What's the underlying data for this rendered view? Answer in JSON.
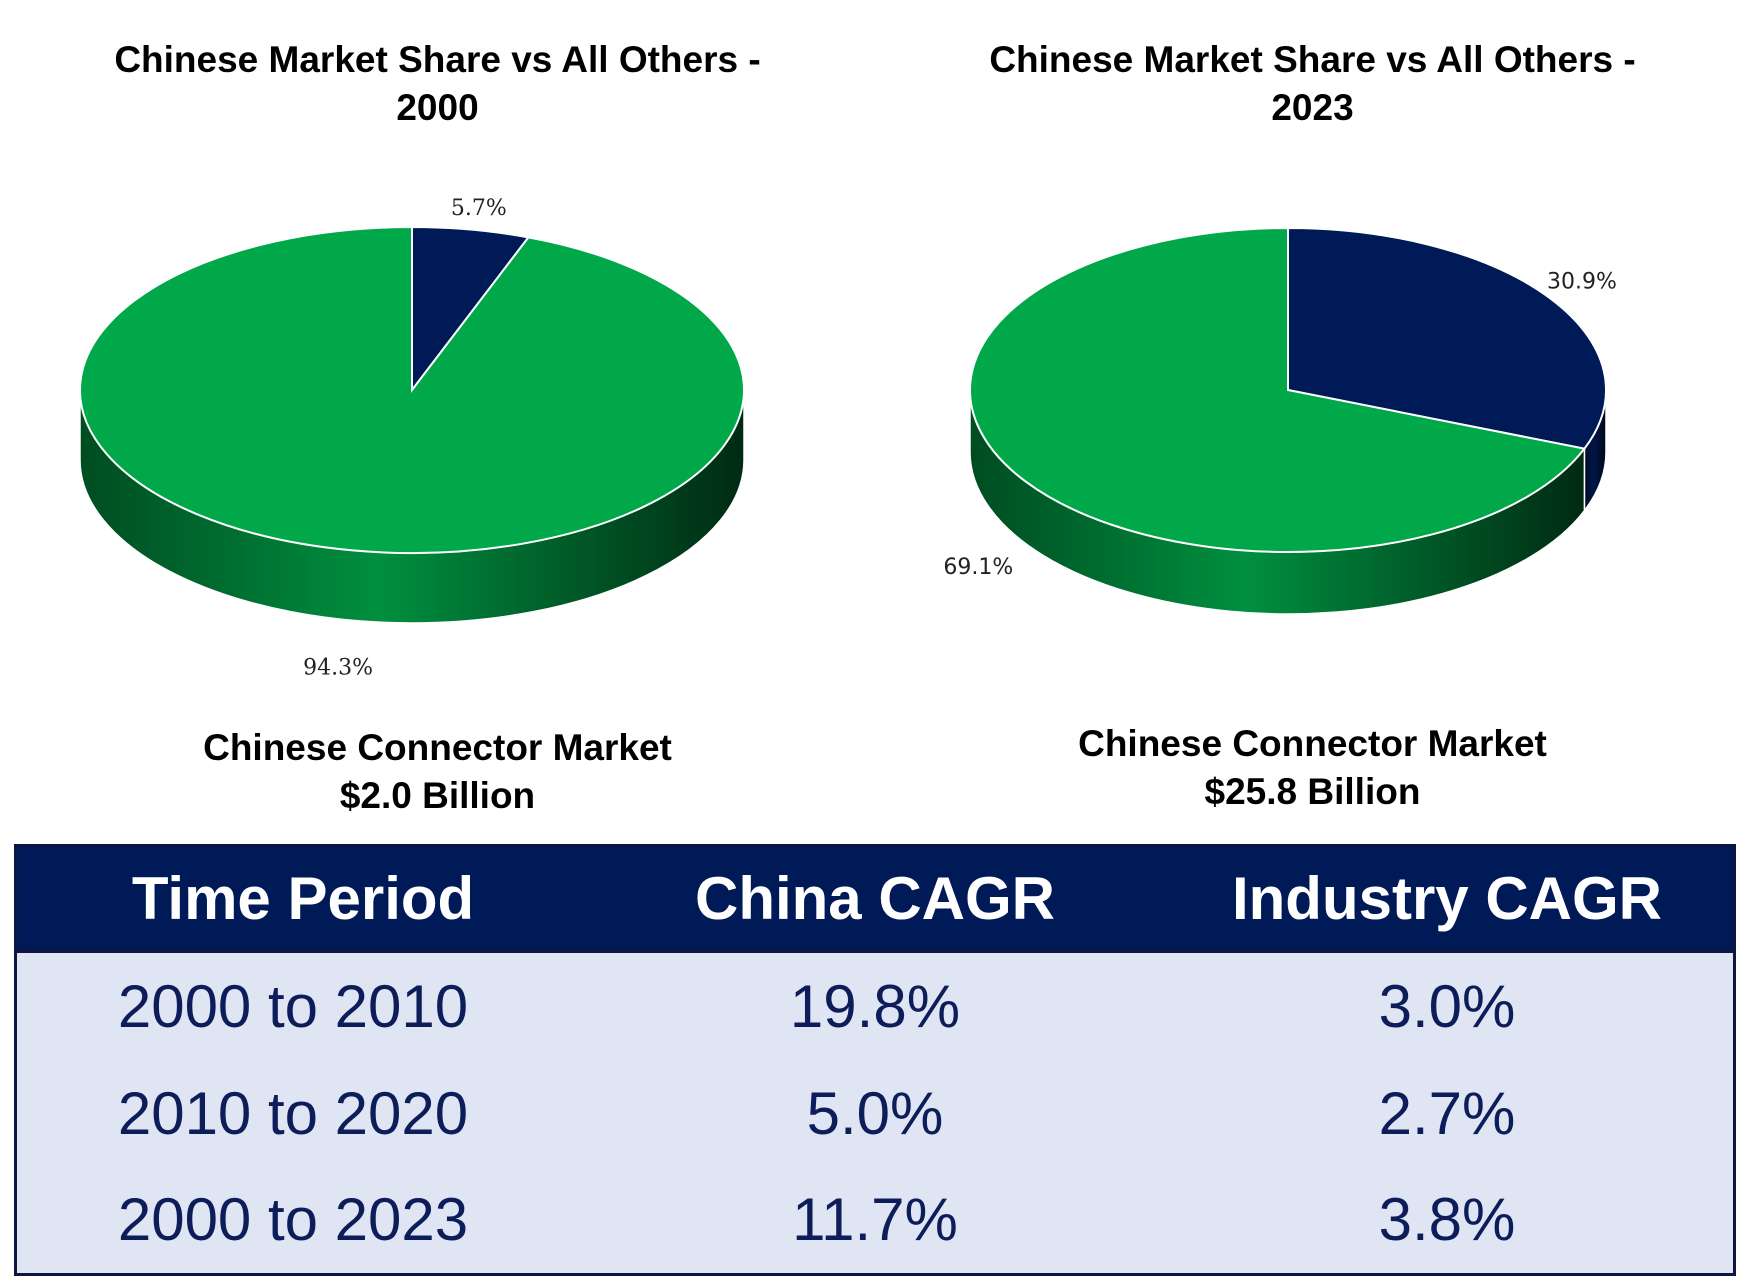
{
  "chart_data": [
    {
      "type": "pie",
      "title": "Chinese Market Share vs All Others - 2000",
      "slices": [
        {
          "label": "5.7%",
          "value": 5.7,
          "color": "#001a57"
        },
        {
          "label": "94.3%",
          "value": 94.3,
          "color": "#00a84a"
        }
      ],
      "caption_line1": "Chinese Connector Market",
      "caption_line2": "$2.0 Billion"
    },
    {
      "type": "pie",
      "title": "Chinese Market Share vs All Others - 2023",
      "slices": [
        {
          "label": "30.9%",
          "value": 30.9,
          "color": "#001a57"
        },
        {
          "label": "69.1%",
          "value": 69.1,
          "color": "#00a84a"
        }
      ],
      "caption_line1": "Chinese Connector Market",
      "caption_line2": "$25.8 Billion"
    }
  ],
  "table": {
    "headers": [
      "Time Period",
      "China CAGR",
      "Industry CAGR"
    ],
    "rows": [
      [
        "2000 to 2010",
        "19.8%",
        "3.0%"
      ],
      [
        "2010 to 2020",
        "5.0%",
        "2.7%"
      ],
      [
        "2000 to 2023",
        "11.7%",
        "3.8%"
      ]
    ]
  }
}
